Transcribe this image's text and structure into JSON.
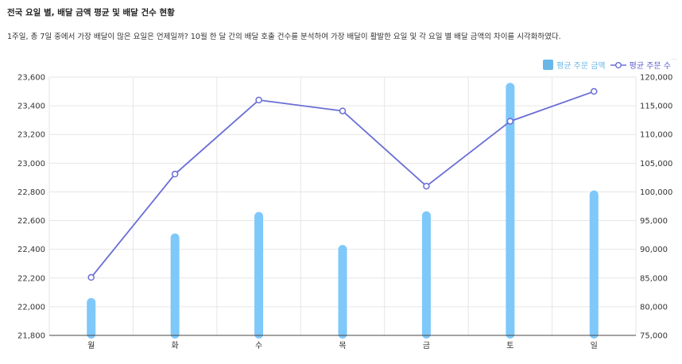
{
  "header": {
    "title": "전국 요일 별, 배달 금액 평균 및 배달 건수 현황",
    "subtitle": "1주일, 총 7일 중에서 가장 배달이 많은 요일은 언제일까? 10월 한 달 간의 배달 호출 건수를 분석하여 가장 배달이 활발한 요일 및 각 요일 별 배달 금액의 차이를 시각화하였다."
  },
  "legend": {
    "bar_label": "평균 주문 금액",
    "line_label": "평균 주문 수",
    "more": "..."
  },
  "colors": {
    "bar": "#7ec8fa",
    "line": "#6a6fd6",
    "legend_bar": "#6ab6e6",
    "grid": "#e6e6e6"
  },
  "chart_data": {
    "type": "bar",
    "categories": [
      "월",
      "화",
      "수",
      "목",
      "금",
      "토",
      "일"
    ],
    "series": [
      {
        "name": "평균 주문 금액",
        "type": "bar",
        "axis": "left",
        "values": [
          22060,
          22510,
          22660,
          22430,
          22665,
          23560,
          22810
        ]
      },
      {
        "name": "평균 주문 수",
        "type": "line",
        "axis": "right",
        "values": [
          85100,
          103100,
          116000,
          114100,
          101000,
          112300,
          117500
        ]
      }
    ],
    "y_left": {
      "min": 21800,
      "max": 23600,
      "ticks": [
        "21,800",
        "22,000",
        "22,200",
        "22,400",
        "22,600",
        "22,800",
        "23,000",
        "23,200",
        "23,400",
        "23,600"
      ]
    },
    "y_right": {
      "min": 75000,
      "max": 120000,
      "ticks": [
        "75,000",
        "80,000",
        "85,000",
        "90,000",
        "95,000",
        "100,000",
        "105,000",
        "110,000",
        "115,000",
        "120,000"
      ]
    },
    "grid": true,
    "legend_position": "top-right"
  }
}
